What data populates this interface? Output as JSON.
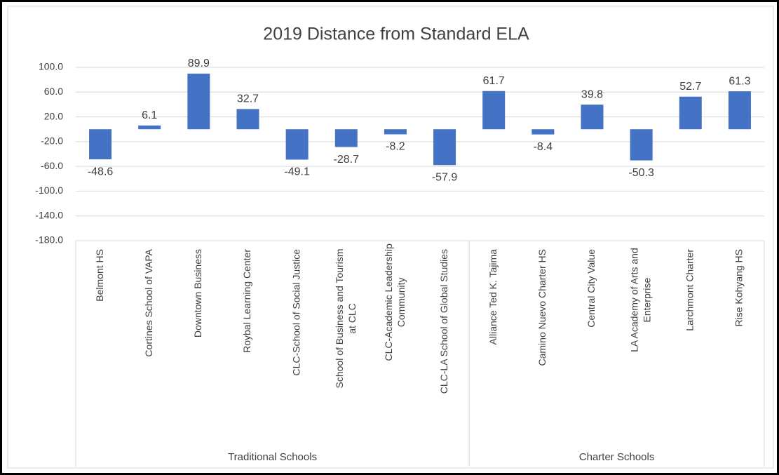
{
  "chart_data": {
    "type": "bar",
    "title": "2019 Distance from Standard ELA",
    "categories": [
      "Belmont HS",
      "Cortines School of VAPA",
      "Downtown Business",
      "Roybal Learning Center",
      "CLC-School of Social Justice",
      "School of Business and Tourism at CLC",
      "CLC-Academic Leadership Community",
      "CLC-LA School of Global Studies",
      "Alliance Ted K. Tajima",
      "Camino Nuevo Charter HS",
      "Central City Value",
      "LA Academy of Arts and Enterprise",
      "Larchmont Charter",
      "Rise Kohyang HS"
    ],
    "values": [
      -48.6,
      6.1,
      89.9,
      32.7,
      -49.1,
      -28.7,
      -8.2,
      -57.9,
      61.7,
      -8.4,
      39.8,
      -50.3,
      52.7,
      61.3
    ],
    "groups": [
      {
        "label": "Traditional Schools",
        "size": 8
      },
      {
        "label": "Charter Schools",
        "size": 6
      }
    ],
    "color": "#4472c4",
    "ylim": [
      -180,
      100
    ],
    "yticks": [
      {
        "value": -180,
        "label": "-180.0"
      },
      {
        "value": -140,
        "label": "-140.0"
      },
      {
        "value": -100,
        "label": "-100.0"
      },
      {
        "value": -60,
        "label": "-60.0"
      },
      {
        "value": -20,
        "label": "-20.0"
      },
      {
        "value": 20,
        "label": "20.0"
      },
      {
        "value": 60,
        "label": "60.0"
      },
      {
        "value": 100,
        "label": "100.0"
      }
    ],
    "grid": true
  }
}
